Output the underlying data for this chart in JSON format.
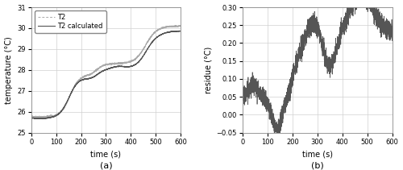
{
  "subplot_a": {
    "ylabel": "temperature (°C)",
    "xlabel": "time (s)",
    "label_a": "(a)",
    "xlim": [
      0,
      600
    ],
    "ylim": [
      25,
      31
    ],
    "yticks": [
      25,
      26,
      27,
      28,
      29,
      30,
      31
    ],
    "xticks": [
      0,
      100,
      200,
      300,
      400,
      500,
      600
    ],
    "legend": [
      "T2",
      "T2 calculated"
    ],
    "t2_color": "#aaaaaa",
    "t2calc_color": "#555555"
  },
  "subplot_b": {
    "ylabel": "residue (°C)",
    "xlabel": "time (s)",
    "label_b": "(b)",
    "xlim": [
      0,
      600
    ],
    "ylim": [
      -0.05,
      0.3
    ],
    "yticks": [
      -0.05,
      0.0,
      0.05,
      0.1,
      0.15,
      0.2,
      0.25,
      0.3
    ],
    "xticks": [
      0,
      100,
      200,
      300,
      400,
      500,
      600
    ],
    "residue_color": "#555555"
  },
  "fig_background": "#ffffff",
  "axes_background": "#ffffff",
  "grid_color": "#d0d0d0",
  "label_fontsize": 7,
  "tick_fontsize": 6,
  "legend_fontsize": 6,
  "subtitle_fontsize": 8
}
